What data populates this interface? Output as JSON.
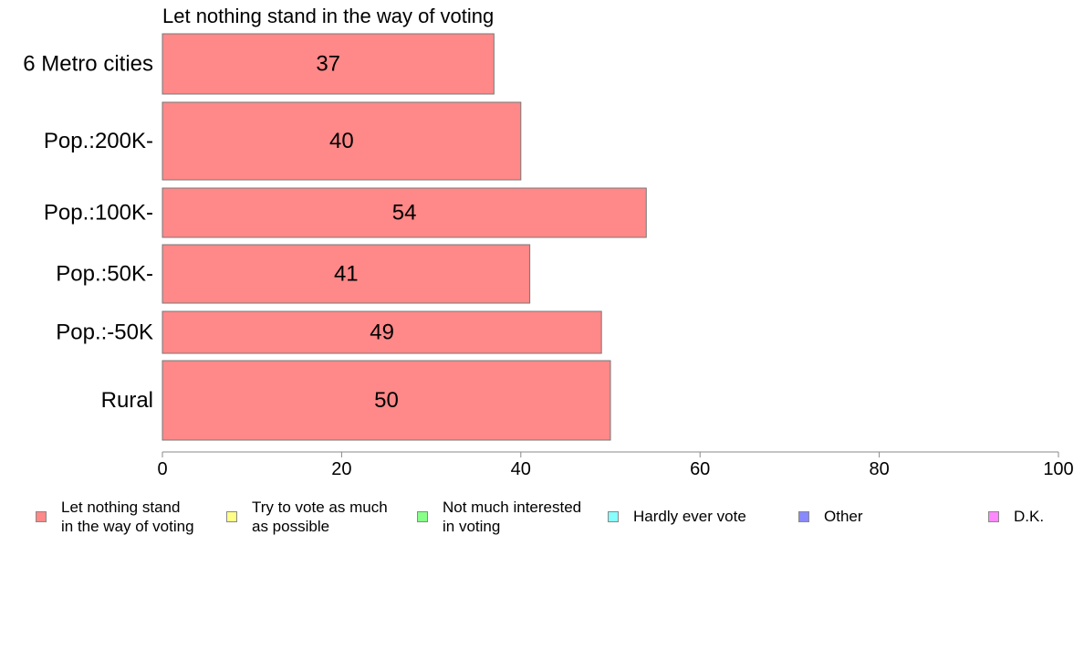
{
  "chart_data": {
    "type": "bar",
    "orientation": "horizontal",
    "title": "Let nothing stand in the way of voting",
    "categories": [
      "6 Metro cities",
      "Pop.:200K-",
      "Pop.:100K-",
      "Pop.:50K-",
      "Pop.:-50K",
      "Rural"
    ],
    "series": [
      {
        "name": "Let nothing stand in the way of voting",
        "color": "#ff8888",
        "values": [
          37,
          40,
          54,
          41,
          49,
          50
        ]
      }
    ],
    "xlim": [
      0,
      100
    ],
    "xticks": [
      "0",
      "20",
      "40",
      "60",
      "80",
      "100"
    ],
    "grid": false
  },
  "legend": [
    {
      "label_line1": "Let nothing stand",
      "label_line2": "in the way of voting",
      "color": "#ff8888"
    },
    {
      "label_line1": "Try to vote as much",
      "label_line2": "as possible",
      "color": "#ffff88"
    },
    {
      "label_line1": "Not much interested",
      "label_line2": "in voting",
      "color": "#88ff88"
    },
    {
      "label_line1": "Hardly ever vote",
      "label_line2": "",
      "color": "#88ffff"
    },
    {
      "label_line1": "Other",
      "label_line2": "",
      "color": "#8888ff"
    },
    {
      "label_line1": "D.K.",
      "label_line2": "",
      "color": "#ff88ff"
    }
  ]
}
